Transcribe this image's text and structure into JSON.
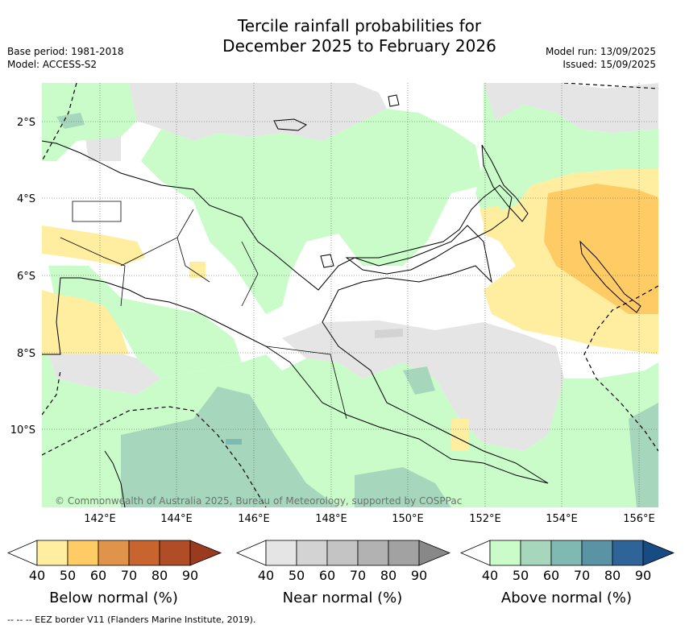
{
  "title_line1": "Tercile rainfall probabilities for",
  "title_line2": "December 2025 to February 2026",
  "base_period": "Base period: 1981-2018",
  "model": "Model: ACCESS-S2",
  "model_run": "Model run: 13/09/2025",
  "issued": "Issued: 15/09/2025",
  "copyright": "© Commonwealth of Australia 2025, Bureau of Meteorology, supported by COSPPac",
  "lat_labels": [
    "2°S",
    "4°S",
    "6°S",
    "8°S",
    "10°S"
  ],
  "lon_labels": [
    "142°E",
    "144°E",
    "146°E",
    "148°E",
    "150°E",
    "152°E",
    "154°E",
    "156°E"
  ],
  "footnote": "-- -- -- EEZ border V11 (Flanders Marine Institute, 2019).",
  "colors": {
    "below": [
      "#ffeda0",
      "#fecb65",
      "#e0934a",
      "#c8642e",
      "#b04d27",
      "#9a3a1e"
    ],
    "near": [
      "#e5e5e5",
      "#d3d3d3",
      "#c4c4c4",
      "#b2b2b2",
      "#a2a2a2",
      "#888888"
    ],
    "above": [
      "#c9fcc9",
      "#a6d7bc",
      "#80b9b2",
      "#5a93a3",
      "#2e6498",
      "#174b82"
    ]
  },
  "legends": [
    {
      "label": "Below normal (%)",
      "ticks": [
        "40",
        "50",
        "60",
        "70",
        "80",
        "90"
      ]
    },
    {
      "label": "Near normal (%)",
      "ticks": [
        "40",
        "50",
        "60",
        "70",
        "80",
        "90"
      ]
    },
    {
      "label": "Above normal (%)",
      "ticks": [
        "40",
        "50",
        "60",
        "70",
        "80",
        "90"
      ]
    }
  ]
}
